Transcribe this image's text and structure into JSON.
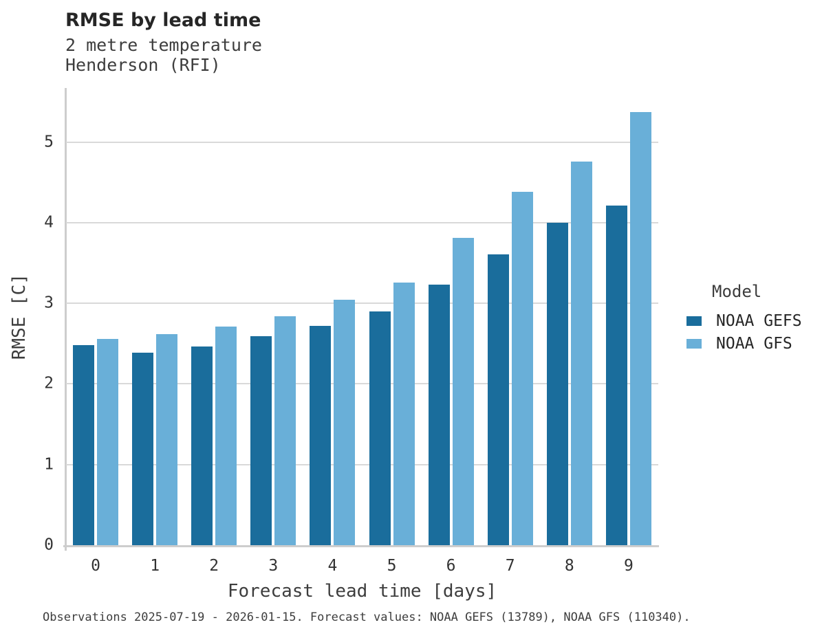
{
  "header": {
    "title": "RMSE by lead time",
    "subtitle_line1": "2 metre temperature",
    "subtitle_line2": "Henderson (RFI)"
  },
  "chart_data": {
    "type": "bar",
    "title": "RMSE by lead time",
    "subtitle": [
      "2 metre temperature",
      "Henderson (RFI)"
    ],
    "categories": [
      "0",
      "1",
      "2",
      "3",
      "4",
      "5",
      "6",
      "7",
      "8",
      "9"
    ],
    "series": [
      {
        "name": "NOAA GEFS",
        "color": "#1A6D9C",
        "values": [
          2.48,
          2.39,
          2.46,
          2.59,
          2.72,
          2.9,
          3.23,
          3.61,
          4.0,
          4.21
        ]
      },
      {
        "name": "NOAA GFS",
        "color": "#69AFD8",
        "values": [
          2.56,
          2.62,
          2.71,
          2.84,
          3.04,
          3.26,
          3.81,
          4.38,
          4.76,
          5.37
        ]
      }
    ],
    "xlabel": "Forecast lead time [days]",
    "ylabel": "RMSE [C]",
    "ylim": [
      0,
      5.67
    ],
    "yticks": [
      0,
      1,
      2,
      3,
      4,
      5
    ],
    "grid": "horizontal",
    "legend_title": "Model",
    "legend_position": "right"
  },
  "legend": {
    "title": "Model",
    "items": [
      "NOAA GEFS",
      "NOAA GFS"
    ]
  },
  "colors": {
    "gefs_dark_blue": "#1A6D9C",
    "gfs_light_blue": "#69AFD8",
    "axis_gray": "#cdcdcd",
    "gridline_gray": "#d9d9d9"
  },
  "footnote": "Observations 2025-07-19 - 2026-01-15. Forecast values: NOAA GEFS (13789), NOAA GFS (110340)."
}
